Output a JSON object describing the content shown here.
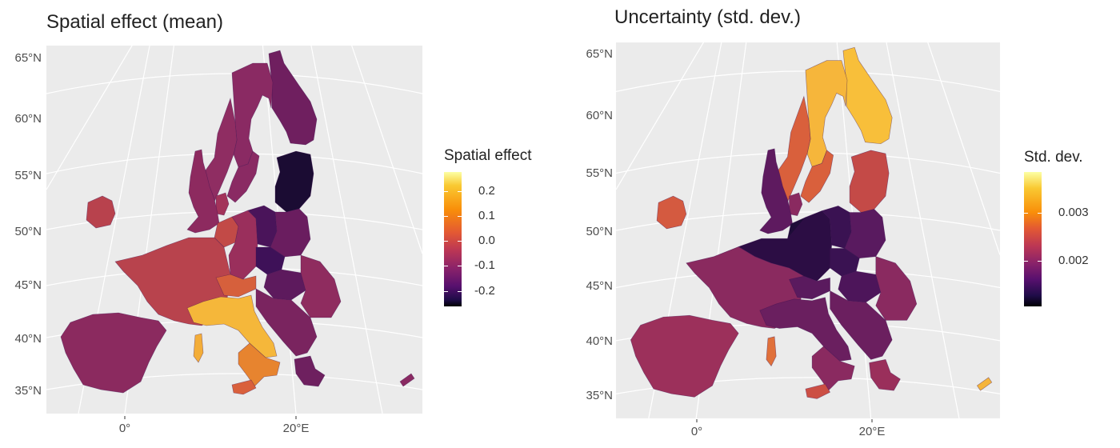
{
  "maps": [
    {
      "title": "Spatial effect (mean)",
      "lat_labels": [
        "65°N",
        "60°N",
        "55°N",
        "50°N",
        "45°N",
        "40°N",
        "35°N"
      ],
      "lon_labels": [
        "0°",
        "20°E"
      ],
      "legend": {
        "title": "Spatial effect",
        "labels": [
          "0.2",
          "0.1",
          "0.0",
          "-0.1",
          "-0.2"
        ],
        "palette": "inferno"
      },
      "region_colors": {
        "scandinavia": "#8a2a63",
        "norway": "#8f2d62",
        "finland": "#6f1f5f",
        "baltics": "#1b0c33",
        "denmark": "#a3335a",
        "uk": "#8d2a5f",
        "ireland": "#b8424d",
        "france": "#b8434d",
        "iberia": "#8b2a5f",
        "benelux": "#c24a47",
        "germany_west": "#9a2f5c",
        "germany_east": "#4a145a",
        "poland": "#6a1d5f",
        "czech": "#3e1158",
        "alps": "#d6603c",
        "italy_north": "#f5b73a",
        "italy_south": "#e7842f",
        "sardinia": "#f3ad38",
        "sicily": "#d9603c",
        "balkans": "#7a245f",
        "romania": "#8f2c5f",
        "hungary": "#5d1a5d",
        "greece": "#6e205f",
        "cyprus": "#8a2a62"
      }
    },
    {
      "title": "Uncertainty (std. dev.)",
      "lat_labels": [
        "65°N",
        "60°N",
        "55°N",
        "50°N",
        "45°N",
        "40°N",
        "35°N"
      ],
      "lon_labels": [
        "0°",
        "20°E"
      ],
      "legend": {
        "title": "Std. dev.",
        "labels": [
          "0.003",
          "0.002"
        ],
        "palette": "inferno"
      },
      "region_colors": {
        "scandinavia": "#f6b63b",
        "norway": "#d9603c",
        "finland": "#f8bf3a",
        "baltics": "#c44a47",
        "denmark": "#8a2a60",
        "uk": "#5e1a5f",
        "ireland": "#d45a40",
        "france": "#8a2a5f",
        "iberia": "#9c305b",
        "benelux": "#1e0c38",
        "germany_west": "#2c0d44",
        "germany_east": "#3a1252",
        "poland": "#591a5f",
        "czech": "#3a1252",
        "alps": "#5a1a5e",
        "italy_north": "#6a1f5f",
        "italy_south": "#8a2a60",
        "sardinia": "#e0703a",
        "sicily": "#cc4f44",
        "balkans": "#6b1f5f",
        "romania": "#8a2a60",
        "hungary": "#4d155a",
        "greece": "#9a2f5b",
        "cyprus": "#f5b53b"
      }
    }
  ]
}
